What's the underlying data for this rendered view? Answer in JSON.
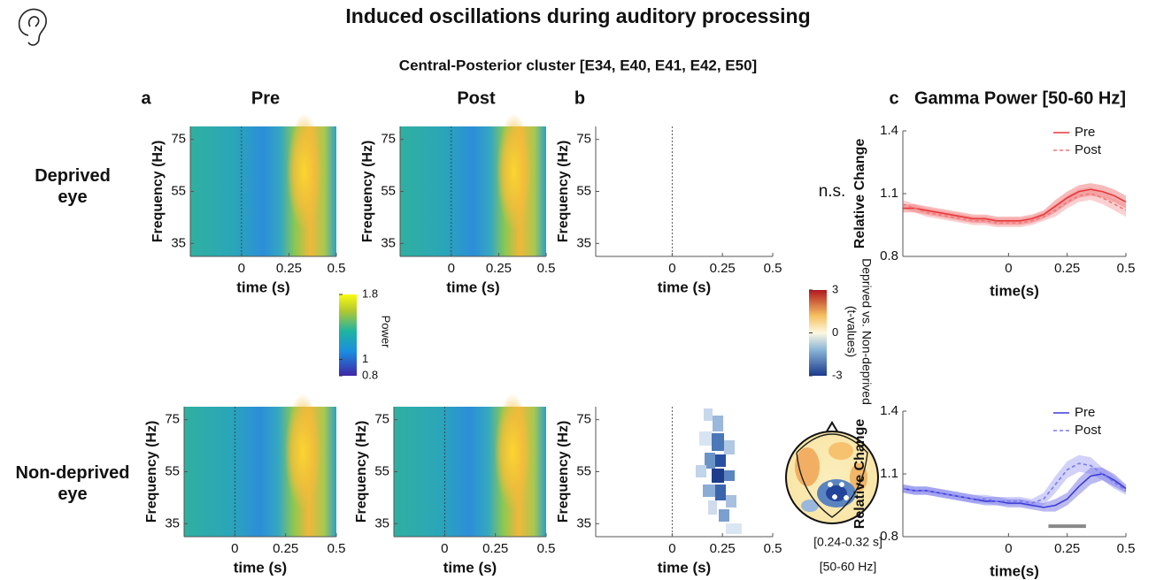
{
  "title": "Induced oscillations during auditory processing",
  "subtitle": "Central-Posterior cluster [E34, E40, E41, E42, E50]",
  "panel_labels": [
    "a",
    "b",
    "c"
  ],
  "column_titles": [
    "Pre",
    "Post"
  ],
  "row_labels": [
    "Deprived eye",
    "Non-deprived eye"
  ],
  "annotations": [
    "n.s.",
    "[0.24-0.32 s]",
    "[50-60 Hz]"
  ],
  "colorbars": [
    {
      "label": "Power",
      "lim": [
        0.8,
        1.8
      ],
      "ticks": [
        0.8,
        1,
        1.8
      ]
    },
    {
      "label": "Deprived vs. Non-deprived (t-values)",
      "lim": [
        -3,
        3
      ],
      "ticks": [
        -3,
        0,
        3
      ]
    }
  ],
  "chart_data": [
    {
      "type": "heatmap",
      "xlabel": "time (s)",
      "ylabel": "Frequency (Hz)",
      "xlim": [
        -0.27,
        0.5
      ],
      "xticks": [
        0,
        0.25,
        0.5
      ],
      "ylim": [
        30,
        80
      ],
      "yticks": [
        35,
        55,
        75
      ]
    },
    {
      "type": "heatmap",
      "xlabel": "time (s)",
      "ylabel": "Frequency (Hz)",
      "xlim": [
        -0.27,
        0.5
      ],
      "xticks": [
        0,
        0.25,
        0.5
      ],
      "ylim": [
        30,
        80
      ],
      "yticks": [
        35,
        55,
        75
      ]
    },
    {
      "type": "tmap",
      "xlabel": "time (s)",
      "ylabel": "Frequency (Hz)",
      "xlim": [
        -0.38,
        0.5
      ],
      "xticks": [
        0,
        0.25,
        0.5
      ],
      "ylim": [
        30,
        80
      ],
      "yticks": [
        35,
        55,
        75
      ]
    },
    {
      "type": "heatmap",
      "xlabel": "time (s)",
      "ylabel": "Frequency (Hz)",
      "xlim": [
        -0.25,
        0.5
      ],
      "xticks": [
        0,
        0.25,
        0.5
      ],
      "ylim": [
        30,
        80
      ],
      "yticks": [
        35,
        55,
        75
      ]
    },
    {
      "type": "heatmap",
      "xlabel": "time (s)",
      "ylabel": "Frequency (Hz)",
      "xlim": [
        -0.25,
        0.5
      ],
      "xticks": [
        0,
        0.25,
        0.5
      ],
      "ylim": [
        30,
        80
      ],
      "yticks": [
        35,
        55,
        75
      ]
    },
    {
      "type": "tmap",
      "xlabel": "time (s)",
      "ylabel": "Frequency (Hz)",
      "xlim": [
        -0.38,
        0.5
      ],
      "xticks": [
        0,
        0.25,
        0.5
      ],
      "ylim": [
        30,
        80
      ],
      "yticks": [
        35,
        55,
        75
      ]
    },
    {
      "type": "line",
      "title": "Gamma Power [50-60 Hz]",
      "xlabel": "time(s)",
      "ylabel": "Relative Change",
      "xlim": [
        -0.45,
        0.5
      ],
      "xticks": [
        0,
        0.25,
        0.5
      ],
      "ylim": [
        0.8,
        1.4
      ],
      "yticks": [
        0.8,
        1.1,
        1.4
      ],
      "x": [
        -0.45,
        -0.4,
        -0.35,
        -0.3,
        -0.25,
        -0.2,
        -0.15,
        -0.1,
        -0.05,
        0,
        0.05,
        0.1,
        0.15,
        0.2,
        0.25,
        0.3,
        0.35,
        0.4,
        0.45,
        0.5
      ],
      "series": [
        {
          "name": "Pre",
          "color": "#e8383a",
          "style": "solid",
          "values": [
            1.03,
            1.03,
            1.02,
            1.01,
            1.0,
            0.99,
            0.98,
            0.98,
            0.97,
            0.97,
            0.97,
            0.98,
            1.0,
            1.04,
            1.08,
            1.11,
            1.12,
            1.11,
            1.09,
            1.06
          ],
          "error": [
            0.02,
            0.02,
            0.02,
            0.02,
            0.02,
            0.02,
            0.02,
            0.02,
            0.02,
            0.02,
            0.02,
            0.02,
            0.02,
            0.03,
            0.03,
            0.03,
            0.03,
            0.03,
            0.03,
            0.03
          ]
        },
        {
          "name": "Post",
          "color": "#f0787a",
          "style": "dashed",
          "values": [
            1.05,
            1.03,
            1.01,
            1.0,
            0.99,
            0.98,
            0.97,
            0.97,
            0.96,
            0.96,
            0.96,
            0.97,
            0.99,
            1.02,
            1.06,
            1.09,
            1.1,
            1.08,
            1.05,
            1.02
          ],
          "error": [
            0.02,
            0.02,
            0.02,
            0.02,
            0.02,
            0.02,
            0.02,
            0.02,
            0.02,
            0.02,
            0.02,
            0.02,
            0.02,
            0.03,
            0.03,
            0.03,
            0.03,
            0.03,
            0.03,
            0.03
          ]
        }
      ]
    },
    {
      "type": "line",
      "xlabel": "time(s)",
      "ylabel": "Relative Change",
      "xlim": [
        -0.45,
        0.5
      ],
      "xticks": [
        0,
        0.25,
        0.5
      ],
      "ylim": [
        0.8,
        1.4
      ],
      "yticks": [
        0.8,
        1.1,
        1.4
      ],
      "x": [
        -0.45,
        -0.4,
        -0.35,
        -0.3,
        -0.25,
        -0.2,
        -0.15,
        -0.1,
        -0.05,
        0,
        0.05,
        0.1,
        0.15,
        0.2,
        0.25,
        0.3,
        0.35,
        0.4,
        0.45,
        0.5
      ],
      "significance": {
        "x": [
          0.17,
          0.33
        ],
        "y": 0.85
      },
      "series": [
        {
          "name": "Pre",
          "color": "#3a3ad8",
          "style": "solid",
          "values": [
            1.03,
            1.02,
            1.02,
            1.01,
            1.0,
            0.99,
            0.98,
            0.97,
            0.97,
            0.96,
            0.96,
            0.95,
            0.94,
            0.95,
            0.98,
            1.04,
            1.09,
            1.1,
            1.07,
            1.03
          ],
          "error": [
            0.02,
            0.02,
            0.02,
            0.02,
            0.02,
            0.02,
            0.02,
            0.02,
            0.02,
            0.02,
            0.02,
            0.02,
            0.02,
            0.03,
            0.03,
            0.04,
            0.04,
            0.03,
            0.03,
            0.02
          ]
        },
        {
          "name": "Post",
          "color": "#7a7af0",
          "style": "dashed",
          "values": [
            1.03,
            1.02,
            1.02,
            1.01,
            1.0,
            0.99,
            0.98,
            0.98,
            0.97,
            0.97,
            0.97,
            0.96,
            0.98,
            1.05,
            1.12,
            1.15,
            1.14,
            1.1,
            1.06,
            1.02
          ],
          "error": [
            0.02,
            0.02,
            0.02,
            0.02,
            0.02,
            0.02,
            0.02,
            0.02,
            0.02,
            0.02,
            0.02,
            0.02,
            0.03,
            0.04,
            0.04,
            0.04,
            0.04,
            0.03,
            0.03,
            0.02
          ]
        }
      ]
    }
  ]
}
